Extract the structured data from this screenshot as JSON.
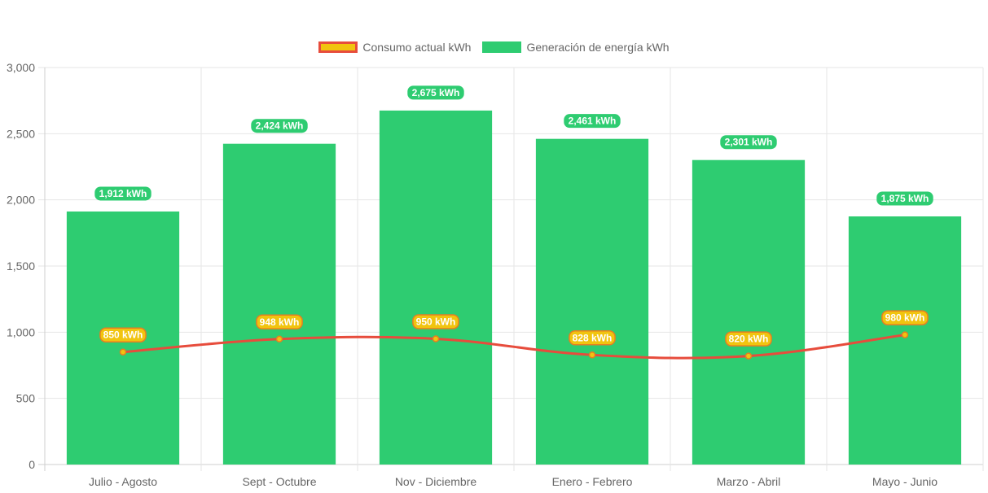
{
  "chart_data": {
    "type": "bar",
    "categories": [
      "Julio - Agosto",
      "Sept - Octubre",
      "Nov - Diciembre",
      "Enero - Febrero",
      "Marzo - Abril",
      "Mayo - Junio"
    ],
    "series": [
      {
        "name": "Consumo actual kWh",
        "kind": "line",
        "values": [
          850,
          948,
          950,
          828,
          820,
          980
        ],
        "labels": [
          "850 kWh",
          "948 kWh",
          "950 kWh",
          "828 kWh",
          "820 kWh",
          "980 kWh"
        ],
        "color": "#e74c3c",
        "fill": "#f1c40f"
      },
      {
        "name": "Generación de energía kWh",
        "kind": "bar",
        "values": [
          1912,
          2424,
          2675,
          2461,
          2301,
          1875
        ],
        "labels": [
          "1,912 kWh",
          "2,424 kWh",
          "2,675 kWh",
          "2,461 kWh",
          "2,301 kWh",
          "1,875 kWh"
        ],
        "color": "#2ecc71"
      }
    ],
    "ylim": [
      0,
      3000
    ],
    "yticks": [
      "0",
      "500",
      "1,000",
      "1,500",
      "2,000",
      "2,500",
      "3,000"
    ],
    "grid": true,
    "legend": "top-center"
  }
}
